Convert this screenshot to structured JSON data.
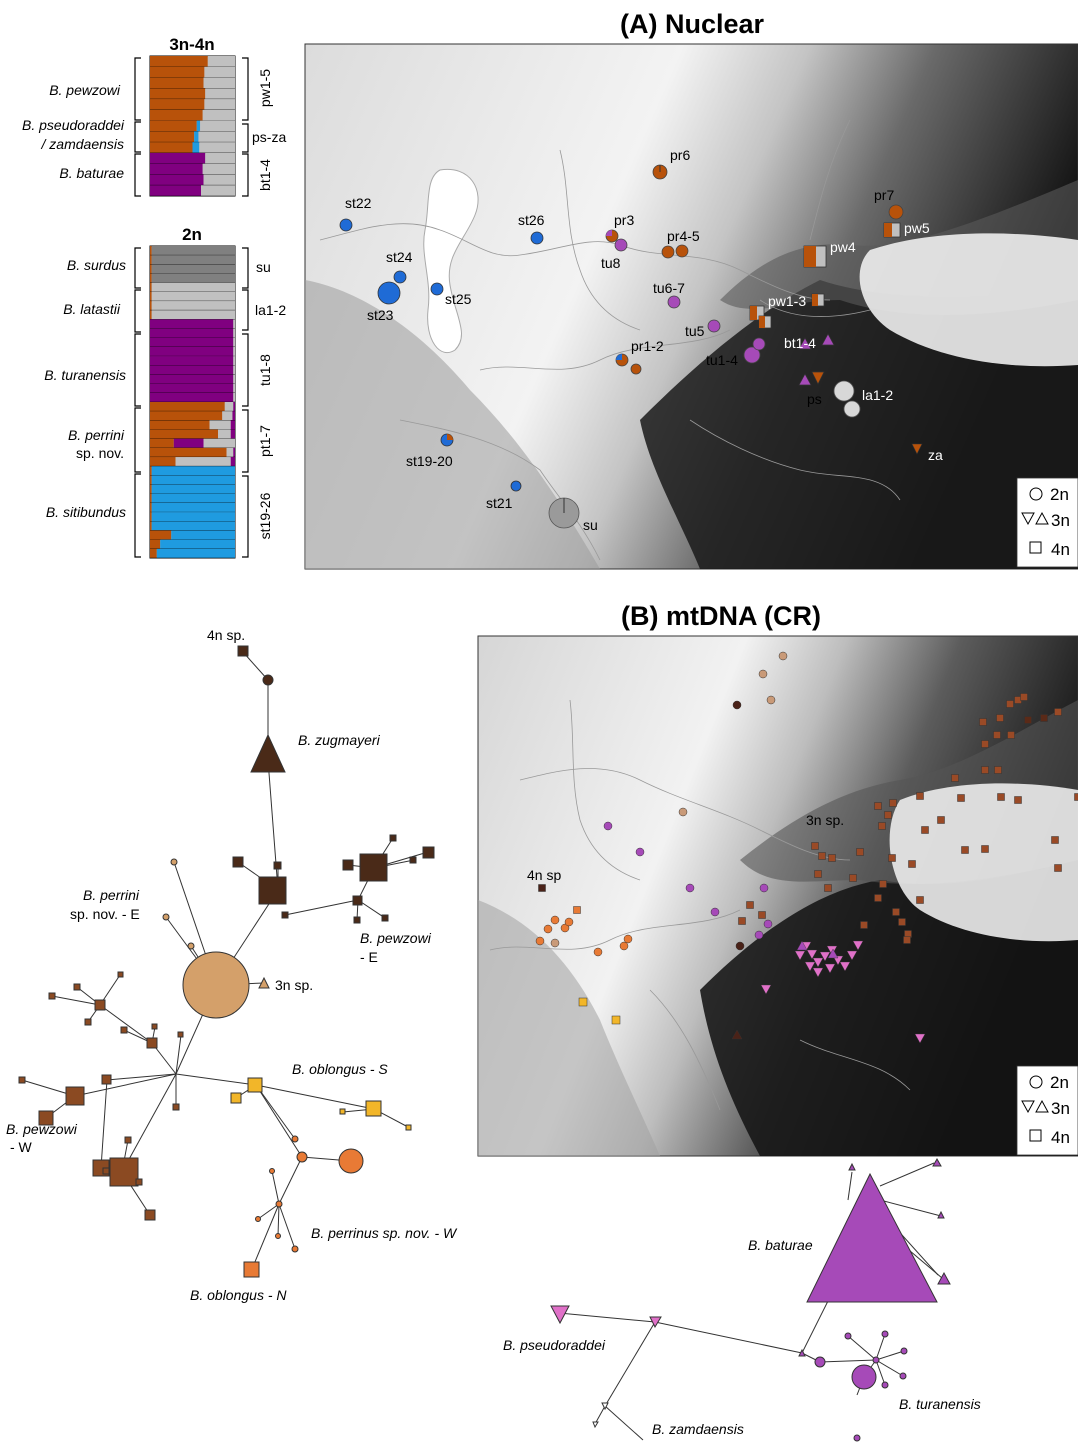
{
  "panel_a": {
    "title": "(A) Nuclear",
    "bar_groups": [
      {
        "header": "3n-4n",
        "species": [
          {
            "name": [
              "B. pewzowi"
            ],
            "code": "pw1-5"
          },
          {
            "name": [
              "B. pseudoraddei",
              "/ zamdaensis"
            ],
            "code": "ps-za"
          },
          {
            "name": [
              "B. baturae"
            ],
            "code": "bt1-4"
          }
        ]
      },
      {
        "header": "2n",
        "species": [
          {
            "name": [
              "B. surdus"
            ],
            "code": "su"
          },
          {
            "name": [
              "B. latastii"
            ],
            "code": "la1-2"
          },
          {
            "name": [
              "B. turanensis"
            ],
            "code": "tu1-8"
          },
          {
            "name": [
              "B. perrini",
              "sp. nov."
            ],
            "code": "pt1-7"
          },
          {
            "name": [
              "B. sitibundus"
            ],
            "code": "st19-26"
          }
        ]
      }
    ],
    "map_labels": [
      "pr6",
      "pr7",
      "st22",
      "st26",
      "pr3",
      "pr4-5",
      "pw5",
      "pw4",
      "tu8",
      "st24",
      "st25",
      "st23",
      "tu6-7",
      "pw1-3",
      "tu5",
      "bt1-4",
      "pr1-2",
      "tu1-4",
      "ps",
      "la1-2",
      "st19-20",
      "za",
      "st21",
      "su"
    ],
    "legend": [
      {
        "symbol": "○",
        "label": "2n"
      },
      {
        "symbol": "▽△",
        "label": "3n"
      },
      {
        "symbol": "□",
        "label": "4n"
      }
    ]
  },
  "panel_b": {
    "title": "(B) mtDNA (CR)",
    "map_labels": [
      "3n sp.",
      "4n sp"
    ],
    "legend": [
      {
        "symbol": "○",
        "label": "2n"
      },
      {
        "symbol": "▽△",
        "label": "3n"
      },
      {
        "symbol": "□",
        "label": "4n"
      }
    ]
  },
  "network_left": {
    "labels": {
      "n4sp": "4n sp.",
      "zugmayeri": "B. zugmayeri",
      "perrini_e_1": "B. perrini",
      "perrini_e_2": "sp. nov. - E",
      "pewzowi_e_1": "B. pewzowi",
      "pewzowi_e_2": "- E",
      "n3sp": "3n sp.",
      "oblongus_s": "B. oblongus - S",
      "pewzowi_w_1": "B. pewzowi",
      "pewzowi_w_2": "- W",
      "perrinus_w": "B. perrinus sp. nov. - W",
      "oblongus_n": "B. oblongus - N"
    }
  },
  "network_right": {
    "labels": {
      "baturae": "B. baturae",
      "pseudoraddei": "B. pseudoraddei",
      "zamdaensis": "B. zamdaensis",
      "turanensis": "B. turanensis"
    }
  },
  "colors": {
    "orange_brown": "#b8520a",
    "purple": "#800080",
    "grey": "#c0c0c0",
    "dark_grey": "#808080",
    "blue": "#1f9be0",
    "brown_dark": "#4a2a18",
    "brown_mid": "#8b4a22",
    "tan": "#d4a06a",
    "yellow": "#f2b629",
    "orange": "#e87a35",
    "violet": "#a64ab8",
    "pink": "#e070c8"
  }
}
